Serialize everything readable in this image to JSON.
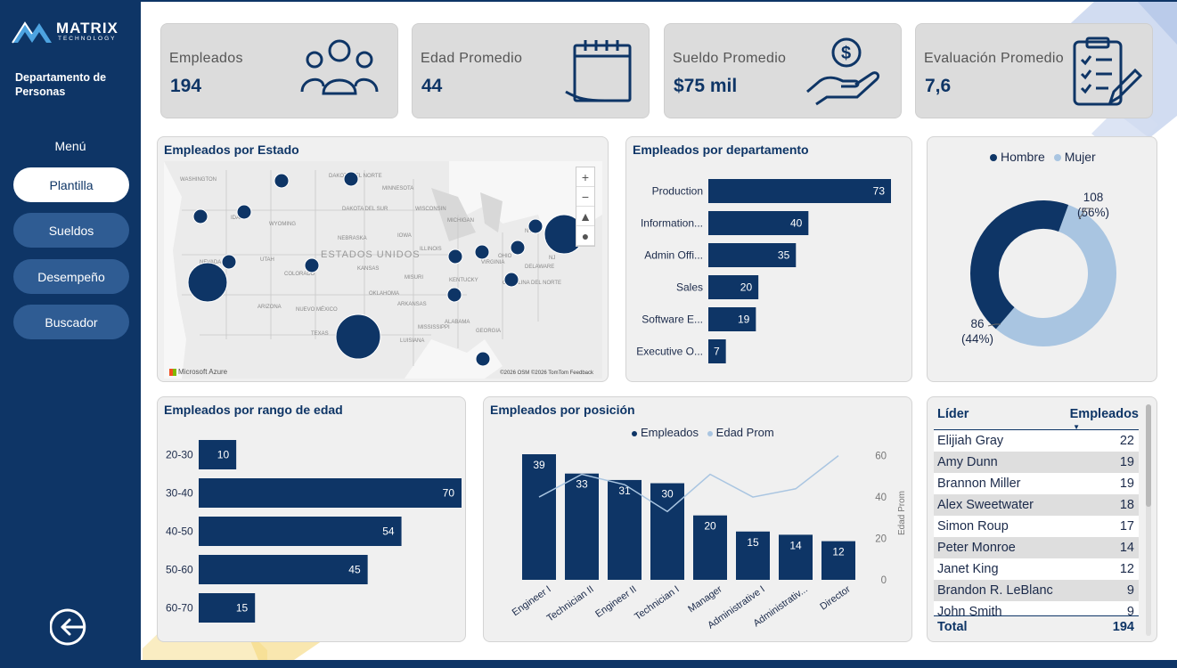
{
  "brand": {
    "name": "MATRIX",
    "sub": "TECHNOLOGY"
  },
  "sidebar": {
    "department": "Departamento de Personas",
    "menu_label": "Menú",
    "items": [
      {
        "label": "Plantilla",
        "active": true
      },
      {
        "label": "Sueldos",
        "active": false
      },
      {
        "label": "Desempeño",
        "active": false
      },
      {
        "label": "Buscador",
        "active": false
      }
    ],
    "exit_icon": "exit-icon"
  },
  "kpis": [
    {
      "label": "Empleados",
      "value": "194",
      "icon": "people-icon"
    },
    {
      "label": "Edad Promedio",
      "value": "44",
      "icon": "calendar-icon"
    },
    {
      "label": "Sueldo Promedio",
      "value": "$75 mil",
      "icon": "money-hand-icon"
    },
    {
      "label": "Evaluación Promedio",
      "value": "7,6",
      "icon": "clipboard-icon"
    }
  ],
  "map": {
    "title": "Empleados por Estado",
    "country_label": "ESTADOS UNIDOS",
    "state_labels": [
      "WASHINGTON",
      "DAKOTA DEL NORTE",
      "MINNESOTA",
      "DAKOTA DEL SUR",
      "IDAHO",
      "WYOMING",
      "WISCONSIN",
      "MICHIGAN",
      "IOWA",
      "NEBRASKA",
      "ILLINOIS",
      "OHIO",
      "NEVADA",
      "UTAH",
      "COLORADO",
      "KANSAS",
      "MISURI",
      "VIRGINIA",
      "KENTUCKY",
      "CAROLINA DEL NORTE",
      "OKLAHOMA",
      "ARIZONA",
      "NUEVO MÉXICO",
      "ARKANSAS",
      "TEXAS",
      "MISSISSIPPI",
      "ALABAMA",
      "GEORGIA",
      "LUISIANA",
      "NY",
      "NJ",
      "DELAWARE"
    ],
    "controls": [
      "+",
      "−",
      "▲",
      "●"
    ],
    "footer_left": "Microsoft Azure",
    "footer_right": "©2026 OSM ©2026 TomTom Feedback"
  },
  "dept_chart": {
    "title": "Empleados por departamento",
    "chart_data": {
      "type": "bar",
      "orientation": "horizontal",
      "categories": [
        "Production",
        "Information...",
        "Admin Offi...",
        "Sales",
        "Software E...",
        "Executive O..."
      ],
      "values": [
        73,
        40,
        35,
        20,
        19,
        7
      ]
    }
  },
  "gender_chart": {
    "legend": [
      {
        "name": "Hombre",
        "color": "#0e3566"
      },
      {
        "name": "Mujer",
        "color": "#a9c5e1"
      }
    ],
    "chart_data": {
      "type": "pie",
      "donut": true,
      "series": [
        {
          "name": "Hombre",
          "value": 86,
          "label": "86",
          "pct": "(44%)"
        },
        {
          "name": "Mujer",
          "value": 108,
          "label": "108",
          "pct": "(56%)"
        }
      ]
    }
  },
  "age_chart": {
    "title": "Empleados por rango de edad",
    "chart_data": {
      "type": "bar",
      "orientation": "horizontal",
      "categories": [
        "20-30",
        "30-40",
        "40-50",
        "50-60",
        "60-70"
      ],
      "values": [
        10,
        70,
        54,
        45,
        15
      ]
    }
  },
  "position_chart": {
    "title": "Empleados por posición",
    "legend": [
      {
        "name": "Empleados",
        "color": "#0e3566"
      },
      {
        "name": "Edad Prom",
        "color": "#a9c5e1"
      }
    ],
    "chart_data": {
      "type": "bar",
      "categories": [
        "Engineer I",
        "Technician II",
        "Engineer II",
        "Technician I",
        "Manager",
        "Administrative I",
        "Administrativ...",
        "Director"
      ],
      "series": [
        {
          "name": "Empleados",
          "type": "bar",
          "values": [
            39,
            33,
            31,
            30,
            20,
            15,
            14,
            12
          ]
        },
        {
          "name": "Edad Prom",
          "type": "line",
          "axis": "right",
          "values": [
            40,
            51,
            46,
            33,
            51,
            40,
            44,
            60
          ]
        }
      ],
      "y2label": "Edad Prom",
      "y2ticks": [
        "0",
        "20",
        "40",
        "60"
      ],
      "y2lim": [
        0,
        65
      ]
    }
  },
  "leader_table": {
    "headers": {
      "leader": "Líder",
      "employees": "Empleados"
    },
    "rows": [
      {
        "leader": "Elijiah Gray",
        "employees": "22"
      },
      {
        "leader": "Amy Dunn",
        "employees": "19"
      },
      {
        "leader": "Brannon Miller",
        "employees": "19"
      },
      {
        "leader": "Alex Sweetwater",
        "employees": "18"
      },
      {
        "leader": "Simon Roup",
        "employees": "17"
      },
      {
        "leader": "Peter Monroe",
        "employees": "14"
      },
      {
        "leader": "Janet King",
        "employees": "12"
      },
      {
        "leader": "Brandon R. LeBlanc",
        "employees": "9"
      },
      {
        "leader": "John Smith",
        "employees": "9"
      }
    ],
    "total_label": "Total",
    "total_value": "194"
  },
  "colors": {
    "navy": "#0e3566",
    "light_blue": "#a9c5e1",
    "accent_yellow": "#f5d77a"
  }
}
